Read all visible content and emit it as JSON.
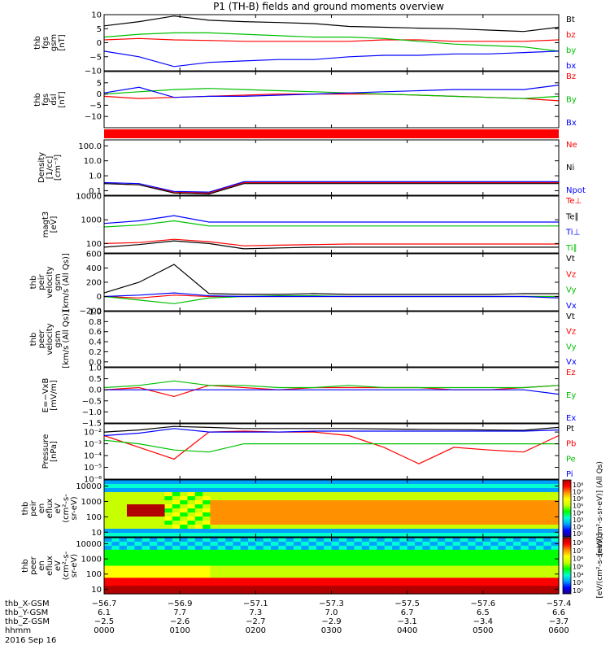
{
  "title": "P1 (TH-B) fields and ground moments overview",
  "chart_data": [
    {
      "type": "line",
      "id": "fgs_gsm",
      "ylabel_lines": [
        "thb",
        "fgs",
        "gsm",
        "[nT]"
      ],
      "ylim": [
        -10,
        10
      ],
      "ticks": [
        10,
        5,
        0,
        -5,
        -10
      ],
      "tick_labels": [
        "10",
        "5",
        "0",
        "−5",
        "−10"
      ],
      "series": [
        {
          "name": "Bt",
          "color": "#000000",
          "values": [
            6.0,
            7.5,
            9.5,
            8.0,
            7.5,
            7.2,
            6.8,
            5.8,
            5.5,
            5.2,
            5.0,
            4.5,
            4.0,
            5.5
          ]
        },
        {
          "name": "bz",
          "color": "#ff0000",
          "values": [
            1.0,
            1.5,
            1.0,
            0.8,
            0.5,
            0.5,
            0.5,
            0.5,
            1.0,
            1.0,
            0.5,
            0.5,
            0.5,
            1.0
          ]
        },
        {
          "name": "by",
          "color": "#00c000",
          "values": [
            2.0,
            3.0,
            3.5,
            3.5,
            3.0,
            2.5,
            2.0,
            2.0,
            1.5,
            0.5,
            -0.5,
            -1.0,
            -1.5,
            -3.0
          ]
        },
        {
          "name": "bx",
          "color": "#0000ff",
          "values": [
            -3.0,
            -5.0,
            -8.5,
            -7.0,
            -6.5,
            -6.0,
            -6.0,
            -5.0,
            -4.5,
            -4.5,
            -4.0,
            -4.0,
            -3.5,
            -3.0
          ]
        }
      ]
    },
    {
      "type": "line",
      "id": "fgs_dsl",
      "ylabel_lines": [
        "thb",
        "fgs",
        "dsl",
        "[nT]"
      ],
      "ylim": [
        -15,
        10
      ],
      "ticks": [
        5,
        0,
        -5,
        -10
      ],
      "tick_labels": [
        "5",
        "0",
        "−5",
        "−10"
      ],
      "series": [
        {
          "name": "Bz",
          "color": "#ff0000",
          "values": [
            -1.0,
            -2.0,
            -1.5,
            -1.0,
            -0.5,
            0.0,
            0.0,
            0.0,
            0.0,
            -0.5,
            -1.0,
            -1.5,
            -2.0,
            -3.0
          ]
        },
        {
          "name": "By",
          "color": "#00c000",
          "values": [
            0.0,
            1.0,
            2.0,
            2.5,
            2.0,
            1.5,
            1.0,
            0.5,
            0.0,
            -0.5,
            -1.0,
            -1.5,
            -2.0,
            -1.0
          ]
        },
        {
          "name": "Bx",
          "color": "#0000ff",
          "values": [
            0.5,
            3.0,
            -1.5,
            -1.0,
            -1.0,
            -0.5,
            0.0,
            0.5,
            1.0,
            1.5,
            2.0,
            2.0,
            2.0,
            4.0
          ]
        }
      ]
    },
    {
      "type": "line",
      "id": "density",
      "ylabel_lines": [
        "Density",
        "[1/cc]",
        "[cm⁻³]"
      ],
      "log": true,
      "ylim": [
        0.05,
        250
      ],
      "ticks": [
        100,
        10,
        1,
        0.1
      ],
      "tick_labels": [
        "100.0",
        "10.0",
        "1.0",
        "0.1"
      ],
      "series": [
        {
          "name": "Ne",
          "color": "#ff0000",
          "values": [
            0.3,
            0.25,
            0.08,
            0.07,
            0.35,
            0.35,
            0.35,
            0.35,
            0.35,
            0.35,
            0.35,
            0.35,
            0.35,
            0.35
          ]
        },
        {
          "name": "Ni",
          "color": "#000000",
          "values": [
            0.3,
            0.25,
            0.07,
            0.06,
            0.3,
            0.3,
            0.3,
            0.3,
            0.3,
            0.3,
            0.3,
            0.3,
            0.3,
            0.3
          ]
        },
        {
          "name": "Npot",
          "color": "#0000ff",
          "values": [
            0.35,
            0.3,
            0.09,
            0.08,
            0.4,
            0.4,
            0.4,
            0.4,
            0.4,
            0.4,
            0.4,
            0.4,
            0.4,
            0.4
          ]
        }
      ]
    },
    {
      "type": "line",
      "id": "temperature",
      "ylabel_lines": [
        "magt3",
        "[eV]"
      ],
      "log": true,
      "ylim": [
        40,
        10000
      ],
      "ticks": [
        10000,
        1000,
        100
      ],
      "tick_labels": [
        "10000",
        "1000",
        "100"
      ],
      "series": [
        {
          "name": "Te⊥",
          "color": "#ff0000",
          "values": [
            100,
            110,
            150,
            120,
            80,
            85,
            90,
            95,
            95,
            95,
            95,
            95,
            95,
            95
          ]
        },
        {
          "name": "Te∥",
          "color": "#000000",
          "values": [
            70,
            90,
            130,
            100,
            60,
            65,
            70,
            70,
            70,
            70,
            70,
            70,
            70,
            70
          ]
        },
        {
          "name": "Ti⊥",
          "color": "#0000ff",
          "values": [
            700,
            900,
            1500,
            800,
            800,
            800,
            800,
            800,
            800,
            800,
            800,
            800,
            800,
            800
          ]
        },
        {
          "name": "Ti∥",
          "color": "#00c000",
          "values": [
            500,
            600,
            900,
            550,
            550,
            550,
            550,
            550,
            550,
            550,
            550,
            550,
            550,
            550
          ]
        }
      ]
    },
    {
      "type": "line",
      "id": "peir_velocity",
      "ylabel_lines": [
        "thb",
        "peir",
        "velocity",
        "gsm",
        "[km/s (All Qs)]"
      ],
      "ylim": [
        -200,
        600
      ],
      "ticks": [
        600,
        400,
        200,
        0,
        -200
      ],
      "tick_labels": [
        "600",
        "400",
        "200",
        "0",
        "−200"
      ],
      "series": [
        {
          "name": "Vt",
          "color": "#000000",
          "values": [
            50,
            200,
            450,
            40,
            30,
            30,
            40,
            30,
            30,
            30,
            30,
            30,
            40,
            40
          ]
        },
        {
          "name": "Vz",
          "color": "#ff0000",
          "values": [
            0,
            -20,
            20,
            0,
            0,
            0,
            0,
            0,
            0,
            0,
            0,
            0,
            0,
            0
          ]
        },
        {
          "name": "Vy",
          "color": "#00c000",
          "values": [
            0,
            -50,
            -100,
            -20,
            0,
            10,
            10,
            0,
            0,
            0,
            0,
            0,
            0,
            0
          ]
        },
        {
          "name": "Vx",
          "color": "#0000ff",
          "values": [
            0,
            20,
            50,
            10,
            0,
            0,
            0,
            0,
            0,
            0,
            0,
            0,
            0,
            -20
          ]
        }
      ]
    },
    {
      "type": "line",
      "id": "peer_velocity",
      "ylabel_lines": [
        "thb",
        "peer",
        "velocity",
        "gsm",
        "[km/s (All Qs)]"
      ],
      "ylim": [
        -0.1,
        1.0
      ],
      "ticks": [
        1.0,
        0.8,
        0.6,
        0.4,
        0.2,
        0.0
      ],
      "tick_labels": [
        "1.0",
        "0.8",
        "0.6",
        "0.4",
        "0.2",
        "0.0"
      ],
      "series": [
        {
          "name": "Vt",
          "color": "#000000",
          "values": []
        },
        {
          "name": "Vz",
          "color": "#ff0000",
          "values": []
        },
        {
          "name": "Vy",
          "color": "#00c000",
          "values": []
        },
        {
          "name": "Vx",
          "color": "#0000ff",
          "values": []
        }
      ]
    },
    {
      "type": "line",
      "id": "e_field",
      "ylabel_lines": [
        "E=−VxB",
        "[mV/m]"
      ],
      "ylim": [
        -1.5,
        1.0
      ],
      "ticks": [
        1.0,
        0.5,
        0.0,
        -0.5,
        -1.0,
        -1.5
      ],
      "tick_labels": [
        "1.0",
        "0.5",
        "0.0",
        "−0.5",
        "−1.0",
        "−1.5"
      ],
      "series": [
        {
          "name": "Ez",
          "color": "#ff0000",
          "values": [
            0.0,
            0.1,
            -0.3,
            0.2,
            0.1,
            0.0,
            0.1,
            0.1,
            0.1,
            0.1,
            0.0,
            0.0,
            0.1,
            0.2
          ]
        },
        {
          "name": "Ey",
          "color": "#00c000",
          "values": [
            0.1,
            0.2,
            0.4,
            0.2,
            0.2,
            0.1,
            0.1,
            0.2,
            0.1,
            0.1,
            0.1,
            0.1,
            0.1,
            0.2
          ]
        },
        {
          "name": "Ex",
          "color": "#0000ff",
          "values": [
            0.0,
            0.0,
            0.0,
            0.0,
            0.0,
            0.0,
            0.0,
            0.0,
            0.0,
            0.0,
            0.0,
            0.0,
            0.0,
            -0.2
          ]
        }
      ]
    },
    {
      "type": "line",
      "id": "pressure",
      "ylabel_lines": [
        "Pressure",
        "[nPa]"
      ],
      "log": true,
      "ylim": [
        1e-06,
        0.05
      ],
      "ticks": [
        0.01,
        0.001,
        0.0001,
        1e-05,
        1e-06
      ],
      "tick_labels": [
        "10⁻²",
        "10⁻³",
        "10⁻⁴",
        "10⁻⁵",
        "10⁻⁶"
      ],
      "series": [
        {
          "name": "Pt",
          "color": "#000000",
          "values": [
            0.01,
            0.015,
            0.03,
            0.025,
            0.02,
            0.02,
            0.02,
            0.02,
            0.018,
            0.017,
            0.016,
            0.015,
            0.014,
            0.025
          ]
        },
        {
          "name": "Pb",
          "color": "#ff0000",
          "values": [
            0.005,
            0.0005,
            5e-05,
            0.01,
            0.012,
            0.01,
            0.01,
            0.005,
            0.0005,
            2e-05,
            0.0005,
            0.0003,
            0.0002,
            0.005
          ]
        },
        {
          "name": "Pe",
          "color": "#00c000",
          "values": [
            0.002,
            0.001,
            0.0003,
            0.0002,
            0.001,
            0.001,
            0.001,
            0.001,
            0.001,
            0.001,
            0.001,
            0.001,
            0.001,
            0.001
          ]
        },
        {
          "name": "Pi",
          "color": "#0000ff",
          "values": [
            0.005,
            0.008,
            0.02,
            0.01,
            0.01,
            0.01,
            0.012,
            0.012,
            0.012,
            0.012,
            0.012,
            0.012,
            0.012,
            0.015
          ]
        }
      ]
    },
    {
      "type": "heatmap",
      "id": "peir_spectrogram",
      "ylabel_lines": [
        "thb",
        "peir",
        "en",
        "eflux",
        "eV",
        "(cm²-s-",
        "sr-eV)"
      ],
      "log": true,
      "ylim": [
        5,
        25000
      ],
      "ticks": [
        10000,
        1000,
        100,
        10
      ],
      "tick_labels": [
        "10000",
        "1000",
        "100",
        "10"
      ],
      "colorbar_ticks": [
        "10⁸",
        "10⁷",
        "10⁶",
        "10⁵",
        "10⁴",
        "10³",
        "10²",
        "10¹"
      ],
      "colorbar_label": "[eV/(cm²-s-sr-eV)] (All Qs)"
    },
    {
      "type": "heatmap",
      "id": "peer_spectrogram",
      "ylabel_lines": [
        "thb",
        "peer",
        "en",
        "eflux",
        "eV",
        "(cm²-s-",
        "sr-eV)"
      ],
      "log": true,
      "ylim": [
        5,
        25000
      ],
      "ticks": [
        10000,
        1000,
        100,
        10
      ],
      "tick_labels": [
        "10000",
        "1000",
        "100",
        "10"
      ],
      "colorbar_ticks": [
        "10⁸",
        "10⁷",
        "10⁶",
        "10⁵",
        "10⁴",
        "10³",
        "10²"
      ],
      "colorbar_label": "[eV/(cm²-s-sr-eV)]"
    }
  ],
  "x_axis": {
    "row_labels": [
      "thb_X-GSM",
      "thb_Y-GSM",
      "thb_Z-GSM",
      "hhmm"
    ],
    "ticks": [
      [
        "−56.7",
        "−56.9",
        "−57.1",
        "−57.3",
        "−57.5",
        "−57.6",
        "−57.4"
      ],
      [
        "6.1",
        "7.7",
        "7.3",
        "7.0",
        "6.7",
        "6.5",
        "6.6"
      ],
      [
        "−2.5",
        "−2.6",
        "−2.7",
        "−2.9",
        "−3.1",
        "−3.4",
        "−3.7"
      ],
      [
        "0000",
        "0100",
        "0200",
        "0300",
        "0400",
        "0500",
        "0600"
      ]
    ],
    "date": "2016 Sep 16"
  },
  "colors": {
    "black": "#000000",
    "red": "#ff0000",
    "green": "#00c000",
    "blue": "#0000ff"
  }
}
